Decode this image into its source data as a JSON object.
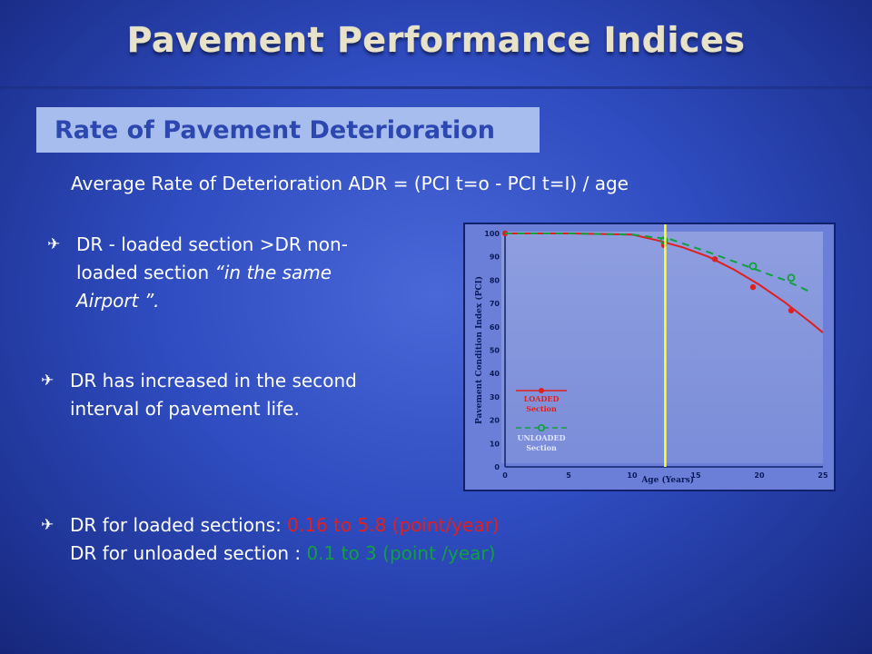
{
  "slide": {
    "title": "Pavement Performance Indices",
    "subtitle": "Rate of Pavement Deterioration",
    "formula": "Average Rate of Deterioration  ADR = (PCI t=o  -  PCI t=I) / age"
  },
  "bullets": [
    {
      "icon": "airplane-icon",
      "line1": "DR - loaded section >DR non-",
      "line2_plain": "loaded section  ",
      "line2_italic": "“in the same",
      "line3_italic": "Airport ”."
    },
    {
      "icon": "airplane-icon",
      "line1": "DR has increased in the second",
      "line2": "interval of  pavement  life."
    },
    {
      "icon": "airplane-icon",
      "line1_label": "DR for loaded sections: ",
      "line1_value": "0.16 to 5.8 (point/year)",
      "line2_label": "DR for unloaded section : ",
      "line2_value": "0.1 to 3 (point /year)"
    }
  ],
  "colors": {
    "loaded": "#e02020",
    "unloaded": "#10a040",
    "marker": "#ffff33"
  },
  "chart_data": {
    "type": "line",
    "xlabel": "Age (Years)",
    "ylabel": "Pavement Condition Index (PCI)",
    "xlim": [
      0,
      25
    ],
    "ylim": [
      0,
      100
    ],
    "x_ticks": [
      0,
      5,
      10,
      15,
      20,
      25
    ],
    "y_ticks": [
      0,
      10,
      20,
      30,
      40,
      50,
      60,
      70,
      80,
      90,
      100
    ],
    "vertical_marker_x": 12.6,
    "legend": {
      "placement": "bottom-left",
      "loaded": "LOADED Section",
      "unloaded": "UNLOADED Section"
    },
    "series": [
      {
        "name": "LOADED Section",
        "color": "#e02020",
        "style": "solid",
        "curve": [
          [
            0,
            100
          ],
          [
            5,
            100
          ],
          [
            10,
            99.5
          ],
          [
            12,
            97
          ],
          [
            14,
            94
          ],
          [
            16,
            90
          ],
          [
            18,
            84.5
          ],
          [
            20,
            78
          ],
          [
            22,
            70.5
          ],
          [
            24,
            62
          ],
          [
            25,
            57.5
          ]
        ],
        "points": [
          [
            0,
            100
          ],
          [
            12.5,
            95
          ],
          [
            16.5,
            89
          ],
          [
            19.5,
            77
          ],
          [
            22.5,
            67
          ]
        ]
      },
      {
        "name": "UNLOADED Section",
        "color": "#10a040",
        "style": "dashed",
        "curve": [
          [
            0,
            100
          ],
          [
            5,
            100
          ],
          [
            10,
            99.5
          ],
          [
            13,
            97.5
          ],
          [
            16,
            92
          ],
          [
            19,
            86
          ],
          [
            22,
            80
          ],
          [
            24,
            75
          ]
        ],
        "points": [
          [
            12.5,
            97
          ],
          [
            19.5,
            86
          ],
          [
            22.5,
            81
          ]
        ]
      }
    ]
  }
}
